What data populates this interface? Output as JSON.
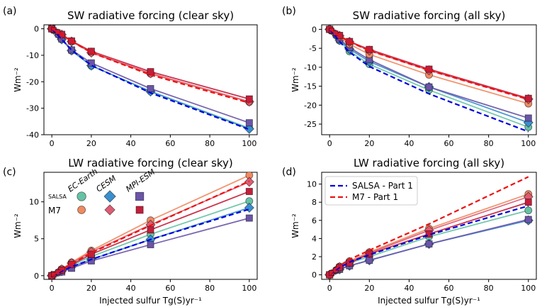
{
  "chart_data": [
    {
      "panel_label": "(a)",
      "type": "line",
      "title": "SW radiative forcing (clear sky)",
      "xlabel": "",
      "ylabel": "Wm⁻²",
      "xlim": [
        -4,
        104
      ],
      "ylim": [
        -40,
        1.5
      ],
      "xticks": [
        0,
        20,
        40,
        60,
        80,
        100
      ],
      "yticks": [
        0,
        -10,
        -20,
        -30,
        -40
      ],
      "grid": false,
      "x": [
        0,
        1,
        3,
        5,
        10,
        20,
        50,
        100
      ],
      "series": [
        {
          "name": "SALSA - Part 1",
          "color": "#0000dd",
          "dash": true,
          "marker": "none",
          "values": [
            0,
            -0.8,
            -2.3,
            -4.0,
            -8.0,
            -13.8,
            -24.2,
            -38.0
          ]
        },
        {
          "name": "M7 - Part 1",
          "color": "#ee1111",
          "dash": true,
          "marker": "none",
          "values": [
            0,
            -0.4,
            -1.3,
            -2.2,
            -4.7,
            -9.0,
            -17.4,
            -28.0
          ]
        },
        {
          "name": "EC-Earth SALSA",
          "color": "#66c2a5",
          "marker": "circle",
          "values": [
            0,
            -0.8,
            -2.4,
            -4.0,
            -8.3,
            -14.0,
            -23.6,
            -37.5
          ]
        },
        {
          "name": "CESM SALSA",
          "color": "#3a8fce",
          "marker": "diamond",
          "values": [
            0,
            -0.8,
            -2.4,
            -4.0,
            -8.2,
            -13.9,
            -23.7,
            -37.8
          ]
        },
        {
          "name": "MPI-ESM SALSA",
          "color": "#6a55a8",
          "marker": "square",
          "values": [
            0,
            -0.7,
            -2.3,
            -3.8,
            -8.0,
            -12.9,
            -22.6,
            -35.5
          ]
        },
        {
          "name": "EC-Earth M7",
          "color": "#f08a60",
          "marker": "circle",
          "values": [
            0,
            -0.4,
            -1.3,
            -2.2,
            -4.8,
            -9.0,
            -17.0,
            -27.7
          ]
        },
        {
          "name": "CESM M7",
          "color": "#de5c72",
          "marker": "diamond",
          "values": [
            0,
            -0.4,
            -1.3,
            -2.2,
            -4.8,
            -9.0,
            -16.8,
            -27.5
          ]
        },
        {
          "name": "MPI-ESM M7",
          "color": "#c41e3a",
          "marker": "square",
          "values": [
            0,
            -0.4,
            -1.2,
            -2.1,
            -4.6,
            -8.5,
            -16.2,
            -26.5
          ]
        }
      ]
    },
    {
      "panel_label": "(b)",
      "type": "line",
      "title": "SW radiative forcing (all sky)",
      "xlabel": "",
      "ylabel": "Wm⁻²",
      "xlim": [
        -4,
        104
      ],
      "ylim": [
        -27.8,
        1.2
      ],
      "xticks": [
        0,
        20,
        40,
        60,
        80,
        100
      ],
      "yticks": [
        0,
        -5,
        -10,
        -15,
        -20,
        -25
      ],
      "grid": false,
      "x": [
        0,
        1,
        3,
        5,
        10,
        20,
        50,
        100
      ],
      "series": [
        {
          "name": "SALSA - Part 1",
          "color": "#0000dd",
          "dash": true,
          "marker": "none",
          "values": [
            0,
            -0.6,
            -1.9,
            -3.2,
            -6.0,
            -9.8,
            -17.0,
            -27.0
          ]
        },
        {
          "name": "M7 - Part 1",
          "color": "#ee1111",
          "dash": true,
          "marker": "none",
          "values": [
            0,
            -0.3,
            -1.0,
            -1.7,
            -3.3,
            -5.6,
            -10.8,
            -18.5
          ]
        },
        {
          "name": "EC-Earth SALSA",
          "color": "#66c2a5",
          "marker": "circle",
          "values": [
            0,
            -0.6,
            -1.8,
            -3.0,
            -5.8,
            -9.2,
            -16.0,
            -25.8
          ]
        },
        {
          "name": "CESM SALSA",
          "color": "#3a8fce",
          "marker": "diamond",
          "values": [
            0,
            -0.5,
            -1.6,
            -2.8,
            -5.2,
            -8.5,
            -15.2,
            -24.6
          ]
        },
        {
          "name": "MPI-ESM SALSA",
          "color": "#6a55a8",
          "marker": "square",
          "values": [
            0,
            -0.5,
            -1.5,
            -2.6,
            -4.8,
            -8.0,
            -15.2,
            -23.4
          ]
        },
        {
          "name": "EC-Earth M7",
          "color": "#f08a60",
          "marker": "circle",
          "values": [
            0,
            -0.4,
            -1.2,
            -2.0,
            -3.9,
            -6.6,
            -12.0,
            -19.6
          ]
        },
        {
          "name": "CESM M7",
          "color": "#de5c72",
          "marker": "diamond",
          "values": [
            0,
            -0.3,
            -1.0,
            -1.7,
            -3.3,
            -5.6,
            -10.8,
            -18.4
          ]
        },
        {
          "name": "MPI-ESM M7",
          "color": "#c41e3a",
          "marker": "square",
          "values": [
            0,
            -0.3,
            -1.0,
            -1.6,
            -3.2,
            -5.3,
            -10.5,
            -18.2
          ]
        }
      ]
    },
    {
      "panel_label": "(c)",
      "type": "line",
      "title": "LW radiative forcing (clear sky)",
      "xlabel": "Injected sulfur Tg(S)yr⁻¹",
      "ylabel": "Wm⁻²",
      "xlim": [
        -4,
        104
      ],
      "ylim": [
        -0.5,
        14
      ],
      "xticks": [
        0,
        20,
        40,
        60,
        80,
        100
      ],
      "yticks": [
        0,
        5,
        10
      ],
      "grid": false,
      "x": [
        0,
        1,
        3,
        5,
        10,
        20,
        50,
        100
      ],
      "series": [
        {
          "name": "SALSA - Part 1",
          "color": "#0000dd",
          "dash": true,
          "marker": "none",
          "values": [
            0,
            0.1,
            0.35,
            0.6,
            1.2,
            2.2,
            4.9,
            9.0
          ]
        },
        {
          "name": "M7 - Part 1",
          "color": "#ee1111",
          "dash": true,
          "marker": "none",
          "values": [
            0,
            0.15,
            0.45,
            0.8,
            1.6,
            3.1,
            6.8,
            12.8
          ]
        },
        {
          "name": "EC-Earth SALSA",
          "color": "#66c2a5",
          "marker": "circle",
          "values": [
            0,
            0.15,
            0.45,
            0.75,
            1.4,
            2.6,
            5.6,
            10.1
          ]
        },
        {
          "name": "CESM SALSA",
          "color": "#3a8fce",
          "marker": "diamond",
          "values": [
            0,
            0.1,
            0.35,
            0.6,
            1.2,
            2.2,
            4.9,
            9.2
          ]
        },
        {
          "name": "MPI-ESM SALSA",
          "color": "#6a55a8",
          "marker": "square",
          "values": [
            0,
            0.1,
            0.3,
            0.5,
            1.0,
            2.0,
            4.2,
            7.8
          ]
        },
        {
          "name": "EC-Earth M7",
          "color": "#f08a60",
          "marker": "circle",
          "values": [
            0,
            0.2,
            0.55,
            0.9,
            1.8,
            3.4,
            7.5,
            13.6
          ]
        },
        {
          "name": "CESM M7",
          "color": "#de5c72",
          "marker": "diamond",
          "values": [
            0,
            0.15,
            0.5,
            0.85,
            1.7,
            3.2,
            6.9,
            12.7
          ]
        },
        {
          "name": "MPI-ESM M7",
          "color": "#c41e3a",
          "marker": "square",
          "values": [
            0,
            0.15,
            0.45,
            0.75,
            1.5,
            2.9,
            6.2,
            11.4
          ]
        }
      ],
      "marker_key": {
        "columns": [
          "EC-Earth",
          "CESM",
          "MPI-ESM"
        ],
        "rows": [
          "SALSA",
          "M7"
        ]
      }
    },
    {
      "panel_label": "(d)",
      "type": "line",
      "title": "LW radiative forcing (all sky)",
      "xlabel": "Injected sulfur Tg(S)yr⁻¹",
      "ylabel": "Wm⁻²",
      "xlim": [
        -4,
        104
      ],
      "ylim": [
        -0.5,
        11.3
      ],
      "xticks": [
        0,
        20,
        40,
        60,
        80,
        100
      ],
      "yticks": [
        0,
        2,
        4,
        6,
        8,
        10
      ],
      "grid": false,
      "x": [
        0,
        1,
        3,
        5,
        10,
        20,
        50,
        100
      ],
      "series": [
        {
          "name": "SALSA - Part 1",
          "color": "#0000dd",
          "dash": true,
          "marker": "none",
          "values": [
            0,
            0.2,
            0.5,
            0.8,
            1.4,
            2.2,
            4.4,
            7.6
          ]
        },
        {
          "name": "M7 - Part 1",
          "color": "#ee1111",
          "dash": true,
          "marker": "none",
          "values": [
            0,
            0.25,
            0.65,
            1.0,
            1.7,
            2.7,
            5.6,
            10.8
          ]
        },
        {
          "name": "EC-Earth SALSA",
          "color": "#66c2a5",
          "marker": "circle",
          "values": [
            0,
            0.25,
            0.6,
            0.9,
            1.3,
            2.0,
            4.2,
            7.1
          ]
        },
        {
          "name": "CESM SALSA",
          "color": "#3a8fce",
          "marker": "diamond",
          "values": [
            0,
            0.15,
            0.4,
            0.6,
            1.0,
            1.6,
            3.4,
            6.0
          ]
        },
        {
          "name": "MPI-ESM SALSA",
          "color": "#6a55a8",
          "marker": "square",
          "values": [
            0,
            0.15,
            0.4,
            0.6,
            1.0,
            1.6,
            3.4,
            6.1
          ]
        },
        {
          "name": "EC-Earth M7",
          "color": "#f08a60",
          "marker": "circle",
          "values": [
            0,
            0.2,
            0.55,
            0.9,
            1.5,
            2.5,
            5.1,
            8.9
          ]
        },
        {
          "name": "CESM M7",
          "color": "#de5c72",
          "marker": "diamond",
          "values": [
            0,
            0.2,
            0.5,
            0.85,
            1.4,
            2.4,
            4.9,
            8.6
          ]
        },
        {
          "name": "MPI-ESM M7",
          "color": "#c41e3a",
          "marker": "square",
          "values": [
            0,
            0.2,
            0.5,
            0.8,
            1.3,
            2.3,
            4.5,
            8.0
          ]
        }
      ],
      "legend": {
        "placement": "top-left",
        "entries": [
          {
            "label": "SALSA - Part 1",
            "color": "#0000dd"
          },
          {
            "label": "M7 - Part 1",
            "color": "#ee1111"
          }
        ]
      }
    }
  ]
}
